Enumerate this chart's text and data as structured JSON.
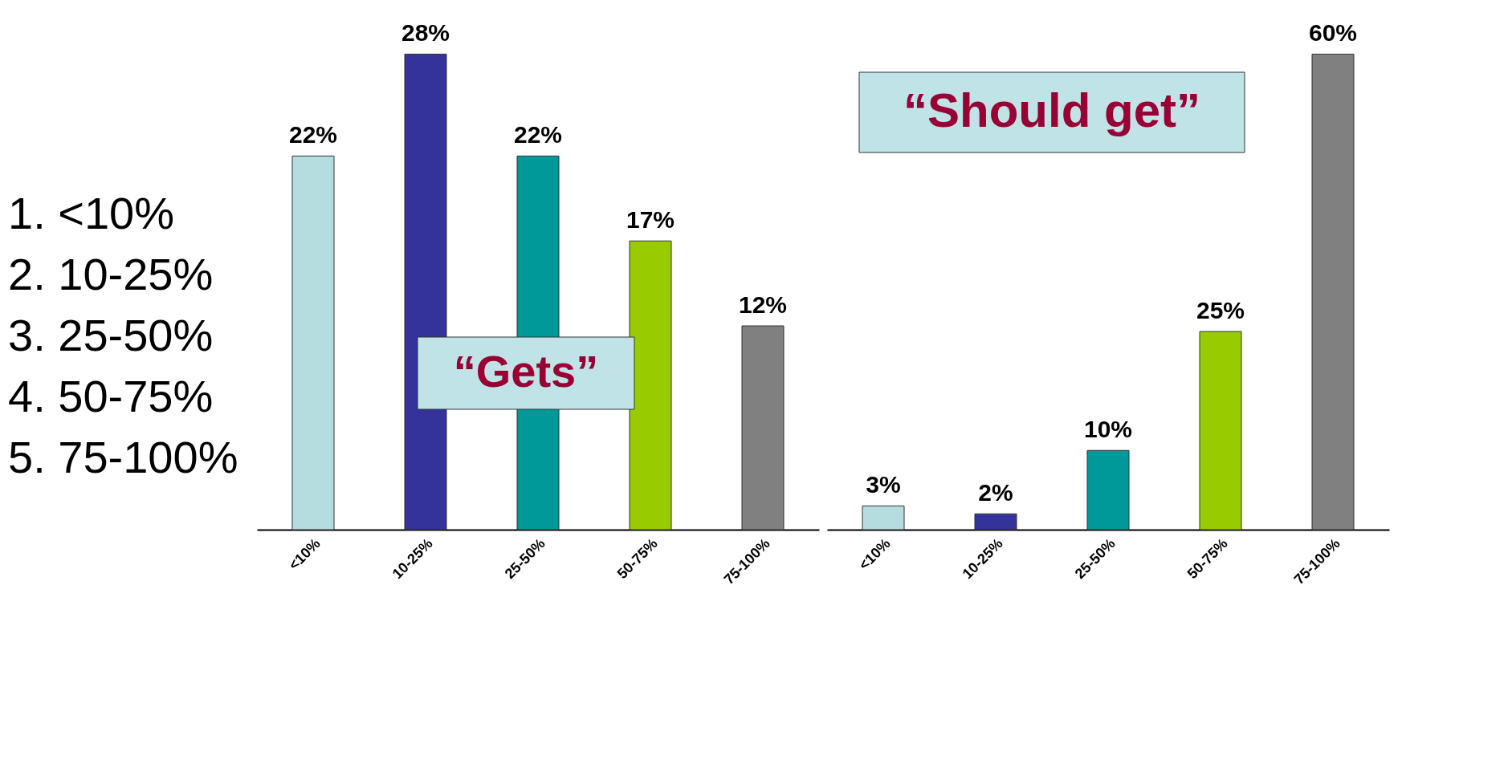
{
  "chart_data": [
    {
      "type": "bar",
      "title": "“Gets”",
      "categories": [
        "<10%",
        "10-25%",
        "25-50%",
        "50-75%",
        "75-100%"
      ],
      "values": [
        22,
        28,
        22,
        17,
        12
      ],
      "value_labels": [
        "22%",
        "28%",
        "22%",
        "17%",
        "12%"
      ],
      "colors": [
        "#b5dde0",
        "#333399",
        "#009999",
        "#99cc00",
        "#808080"
      ],
      "annotations": [
        "1. <10%",
        "2. 10-25%",
        "3. 25-50%",
        "4. 50-75%",
        "5. 75-100%"
      ]
    },
    {
      "type": "bar",
      "title": "“Should get”",
      "categories": [
        "<10%",
        "10-25%",
        "25-50%",
        "50-75%",
        "75-100%"
      ],
      "values": [
        3,
        2,
        10,
        25,
        60
      ],
      "value_labels": [
        "3%",
        "2%",
        "10%",
        "25%",
        "60%"
      ],
      "colors": [
        "#b5dde0",
        "#333399",
        "#009999",
        "#99cc00",
        "#808080"
      ]
    }
  ]
}
